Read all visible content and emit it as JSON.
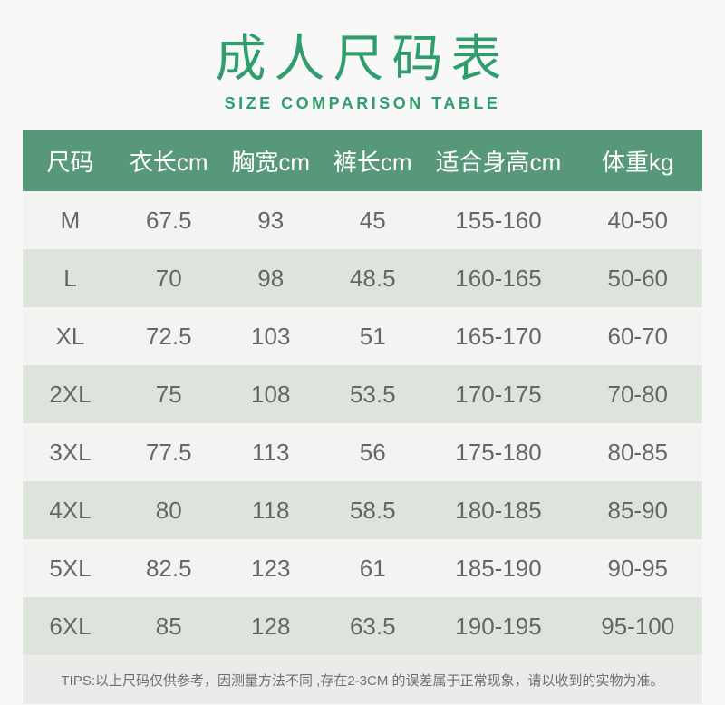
{
  "page": {
    "background": "#f8f8f8"
  },
  "header": {
    "title": "成人尺码表",
    "subtitle": "SIZE COMPARISON TABLE",
    "accent_color": "#2f9e6c"
  },
  "table": {
    "header_bg": "#579878",
    "row_bg": "#f3f4f1",
    "row_alt_bg": "#dde4dc",
    "columns": [
      "尺码",
      "衣长cm",
      "胸宽cm",
      "裤长cm",
      "适合身高cm",
      "体重kg"
    ],
    "rows": [
      [
        "M",
        "67.5",
        "93",
        "45",
        "155-160",
        "40-50"
      ],
      [
        "L",
        "70",
        "98",
        "48.5",
        "160-165",
        "50-60"
      ],
      [
        "XL",
        "72.5",
        "103",
        "51",
        "165-170",
        "60-70"
      ],
      [
        "2XL",
        "75",
        "108",
        "53.5",
        "170-175",
        "70-80"
      ],
      [
        "3XL",
        "77.5",
        "113",
        "56",
        "175-180",
        "80-85"
      ],
      [
        "4XL",
        "80",
        "118",
        "58.5",
        "180-185",
        "85-90"
      ],
      [
        "5XL",
        "82.5",
        "123",
        "61",
        "185-190",
        "90-95"
      ],
      [
        "6XL",
        "85",
        "128",
        "63.5",
        "190-195",
        "95-100"
      ]
    ]
  },
  "footer": {
    "tips": "TIPS:以上尺码仅供参考，因测量方法不同 ,存在2-3CM 的误差属于正常现象，请以收到的实物为准。"
  }
}
